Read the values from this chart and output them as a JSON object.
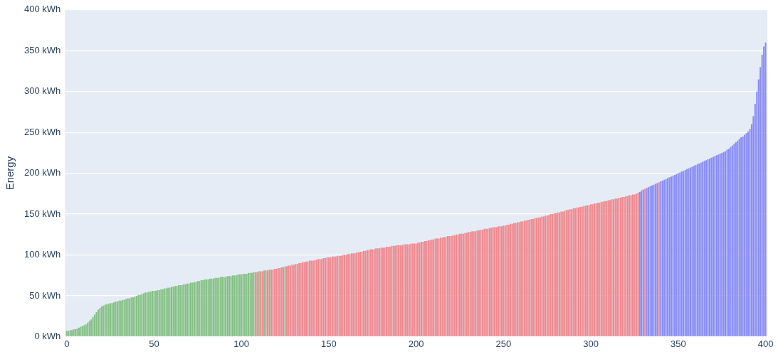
{
  "chart_data": {
    "type": "bar",
    "ylabel": "Energy",
    "xlim": [
      -1,
      401
    ],
    "xticks": [
      0,
      50,
      100,
      150,
      200,
      250,
      300,
      350,
      400
    ],
    "ylim": [
      0,
      400
    ],
    "yticks": [
      {
        "value": 0,
        "label": "0 kWh"
      },
      {
        "value": 50,
        "label": "50 kWh"
      },
      {
        "value": 100,
        "label": "100 kWh"
      },
      {
        "value": 150,
        "label": "150 kWh"
      },
      {
        "value": 200,
        "label": "200 kWh"
      },
      {
        "value": 250,
        "label": "250 kWh"
      },
      {
        "value": 300,
        "label": "300 kWh"
      },
      {
        "value": 350,
        "label": "350 kWh"
      },
      {
        "value": 400,
        "label": "400 kWh"
      }
    ],
    "grid": "y",
    "legend": false,
    "x": [
      0,
      1,
      2,
      3,
      4,
      5,
      6,
      7,
      8,
      9,
      10,
      11,
      12,
      13,
      14,
      15,
      16,
      17,
      18,
      19,
      20,
      21,
      22,
      23,
      24,
      25,
      26,
      27,
      28,
      29,
      30,
      31,
      32,
      33,
      34,
      35,
      36,
      37,
      38,
      39,
      40,
      41,
      42,
      43,
      44,
      45,
      46,
      47,
      48,
      49,
      50,
      51,
      52,
      53,
      54,
      55,
      56,
      57,
      58,
      59,
      60,
      61,
      62,
      63,
      64,
      65,
      66,
      67,
      68,
      69,
      70,
      71,
      72,
      73,
      74,
      75,
      76,
      77,
      78,
      79,
      80,
      81,
      82,
      83,
      84,
      85,
      86,
      87,
      88,
      89,
      90,
      91,
      92,
      93,
      94,
      95,
      96,
      97,
      98,
      99,
      100,
      101,
      102,
      103,
      104,
      105,
      106,
      107,
      108,
      109,
      110,
      111,
      112,
      113,
      114,
      115,
      116,
      117,
      118,
      119,
      120,
      121,
      122,
      123,
      124,
      125,
      126,
      127,
      128,
      129,
      130,
      131,
      132,
      133,
      134,
      135,
      136,
      137,
      138,
      139,
      140,
      141,
      142,
      143,
      144,
      145,
      146,
      147,
      148,
      149,
      150,
      151,
      152,
      153,
      154,
      155,
      156,
      157,
      158,
      159,
      160,
      161,
      162,
      163,
      164,
      165,
      166,
      167,
      168,
      169,
      170,
      171,
      172,
      173,
      174,
      175,
      176,
      177,
      178,
      179,
      180,
      181,
      182,
      183,
      184,
      185,
      186,
      187,
      188,
      189,
      190,
      191,
      192,
      193,
      194,
      195,
      196,
      197,
      198,
      199,
      200,
      201,
      202,
      203,
      204,
      205,
      206,
      207,
      208,
      209,
      210,
      211,
      212,
      213,
      214,
      215,
      216,
      217,
      218,
      219,
      220,
      221,
      222,
      223,
      224,
      225,
      226,
      227,
      228,
      229,
      230,
      231,
      232,
      233,
      234,
      235,
      236,
      237,
      238,
      239,
      240,
      241,
      242,
      243,
      244,
      245,
      246,
      247,
      248,
      249,
      250,
      251,
      252,
      253,
      254,
      255,
      256,
      257,
      258,
      259,
      260,
      261,
      262,
      263,
      264,
      265,
      266,
      267,
      268,
      269,
      270,
      271,
      272,
      273,
      274,
      275,
      276,
      277,
      278,
      279,
      280,
      281,
      282,
      283,
      284,
      285,
      286,
      287,
      288,
      289,
      290,
      291,
      292,
      293,
      294,
      295,
      296,
      297,
      298,
      299,
      300,
      301,
      302,
      303,
      304,
      305,
      306,
      307,
      308,
      309,
      310,
      311,
      312,
      313,
      314,
      315,
      316,
      317,
      318,
      319,
      320,
      321,
      322,
      323,
      324,
      325,
      326,
      327,
      328,
      329,
      330,
      331,
      332,
      333,
      334,
      335,
      336,
      337,
      338,
      339,
      340,
      341,
      342,
      343,
      344,
      345,
      346,
      347,
      348,
      349,
      350,
      351,
      352,
      353,
      354,
      355,
      356,
      357,
      358,
      359,
      360,
      361,
      362,
      363,
      364,
      365,
      366,
      367,
      368,
      369,
      370,
      371,
      372,
      373,
      374,
      375,
      376,
      377,
      378,
      379,
      380,
      381,
      382,
      383,
      384,
      385,
      386,
      387,
      388,
      389,
      390,
      391,
      392,
      393,
      394,
      395,
      396,
      397,
      398,
      399,
      400
    ],
    "values": [
      7,
      7,
      8,
      8,
      9,
      9,
      10,
      11,
      12,
      13,
      14,
      15,
      17,
      19,
      21,
      24,
      27,
      30,
      33,
      35,
      37,
      38,
      39,
      40,
      40,
      41,
      41,
      42,
      43,
      43,
      44,
      44,
      45,
      45,
      46,
      47,
      47,
      48,
      48,
      49,
      50,
      51,
      51,
      52,
      53,
      54,
      54,
      55,
      55,
      56,
      56,
      56,
      57,
      57,
      58,
      58,
      59,
      59,
      60,
      60,
      61,
      61,
      62,
      62,
      63,
      63,
      63,
      64,
      64,
      65,
      65,
      66,
      66,
      67,
      67,
      68,
      68,
      69,
      69,
      70,
      70,
      70,
      71,
      71,
      71,
      72,
      72,
      72,
      73,
      73,
      73,
      73,
      74,
      74,
      74,
      75,
      75,
      75,
      76,
      76,
      76,
      77,
      77,
      77,
      78,
      78,
      78,
      79,
      79,
      79,
      80,
      80,
      80,
      81,
      81,
      81,
      82,
      82,
      82,
      83,
      83,
      84,
      84,
      85,
      85,
      86,
      86,
      87,
      87,
      88,
      88,
      89,
      89,
      90,
      90,
      91,
      91,
      92,
      92,
      93,
      93,
      93,
      94,
      94,
      95,
      95,
      95,
      96,
      96,
      97,
      97,
      97,
      98,
      98,
      98,
      99,
      99,
      99,
      100,
      100,
      100,
      101,
      101,
      102,
      102,
      102,
      103,
      103,
      104,
      104,
      105,
      105,
      106,
      106,
      107,
      107,
      107,
      108,
      108,
      108,
      109,
      109,
      109,
      110,
      110,
      110,
      111,
      111,
      111,
      112,
      112,
      112,
      112,
      113,
      113,
      113,
      113,
      114,
      114,
      114,
      114,
      115,
      115,
      116,
      116,
      117,
      117,
      118,
      118,
      119,
      119,
      120,
      120,
      120,
      121,
      121,
      122,
      122,
      123,
      123,
      123,
      124,
      124,
      125,
      125,
      126,
      126,
      126,
      127,
      127,
      128,
      128,
      129,
      129,
      129,
      130,
      130,
      131,
      131,
      132,
      132,
      132,
      133,
      133,
      134,
      134,
      134,
      135,
      135,
      135,
      136,
      136,
      137,
      137,
      138,
      138,
      139,
      139,
      140,
      140,
      141,
      141,
      142,
      142,
      143,
      143,
      144,
      144,
      145,
      145,
      146,
      146,
      147,
      147,
      148,
      148,
      149,
      150,
      150,
      151,
      151,
      152,
      152,
      153,
      153,
      154,
      155,
      155,
      156,
      156,
      157,
      157,
      158,
      158,
      159,
      159,
      160,
      160,
      161,
      161,
      162,
      162,
      163,
      163,
      164,
      164,
      165,
      165,
      166,
      166,
      167,
      167,
      168,
      168,
      169,
      169,
      170,
      170,
      171,
      171,
      172,
      172,
      173,
      173,
      174,
      174,
      175,
      176,
      177,
      179,
      180,
      181,
      182,
      183,
      184,
      185,
      186,
      187,
      188,
      189,
      190,
      191,
      192,
      193,
      194,
      195,
      196,
      197,
      198,
      199,
      200,
      201,
      202,
      203,
      204,
      205,
      206,
      207,
      208,
      209,
      210,
      211,
      212,
      213,
      214,
      215,
      216,
      217,
      218,
      219,
      220,
      221,
      222,
      223,
      224,
      225,
      226,
      227,
      229,
      230,
      232,
      234,
      236,
      238,
      240,
      242,
      244,
      245,
      247,
      249,
      251,
      254,
      260,
      270,
      285,
      300,
      315,
      330,
      345,
      355,
      360
    ],
    "colors": [
      "#86c186",
      "#86c186",
      "#86c186",
      "#86c186",
      "#86c186",
      "#86c186",
      "#86c186",
      "#86c186",
      "#86c186",
      "#86c186",
      "#86c186",
      "#86c186",
      "#86c186",
      "#86c186",
      "#86c186",
      "#86c186",
      "#86c186",
      "#86c186",
      "#86c186",
      "#86c186",
      "#86c186",
      "#86c186",
      "#86c186",
      "#86c186",
      "#86c186",
      "#86c186",
      "#86c186",
      "#86c186",
      "#86c186",
      "#86c186",
      "#86c186",
      "#86c186",
      "#86c186",
      "#86c186",
      "#86c186",
      "#86c186",
      "#86c186",
      "#86c186",
      "#86c186",
      "#86c186",
      "#86c186",
      "#86c186",
      "#86c186",
      "#86c186",
      "#86c186",
      "#86c186",
      "#86c186",
      "#86c186",
      "#86c186",
      "#86c186",
      "#86c186",
      "#86c186",
      "#86c186",
      "#86c186",
      "#86c186",
      "#86c186",
      "#86c186",
      "#86c186",
      "#86c186",
      "#86c186",
      "#86c186",
      "#86c186",
      "#86c186",
      "#86c186",
      "#86c186",
      "#86c186",
      "#86c186",
      "#86c186",
      "#86c186",
      "#86c186",
      "#86c186",
      "#86c186",
      "#86c186",
      "#86c186",
      "#86c186",
      "#86c186",
      "#86c186",
      "#86c186",
      "#86c186",
      "#86c186",
      "#86c186",
      "#86c186",
      "#86c186",
      "#86c186",
      "#86c186",
      "#86c186",
      "#86c186",
      "#86c186",
      "#86c186",
      "#86c186",
      "#86c186",
      "#86c186",
      "#86c186",
      "#86c186",
      "#86c186",
      "#86c186",
      "#86c186",
      "#86c186",
      "#86c186",
      "#86c186",
      "#86c186",
      "#86c186",
      "#86c186",
      "#86c186",
      "#86c186",
      "#86c186",
      "#86c186",
      "#86c186",
      "#ef8a90",
      "#ef8a90",
      "#86c186",
      "#ef8a90",
      "#ef8a90",
      "#86c186",
      "#ef8a90",
      "#ef8a90",
      "#ef8a90",
      "#86c186",
      "#ef8a90",
      "#ef8a90",
      "#ef8a90",
      "#ef8a90",
      "#ef8a90",
      "#ef8a90",
      "#ef8a90",
      "#86c186",
      "#ef8a90",
      "#ef8a90",
      "#ef8a90",
      "#ef8a90",
      "#ef8a90",
      "#ef8a90",
      "#ef8a90",
      "#ef8a90",
      "#ef8a90",
      "#ef8a90",
      "#ef8a90",
      "#ef8a90",
      "#ef8a90",
      "#ef8a90",
      "#ef8a90",
      "#ef8a90",
      "#ef8a90",
      "#ef8a90",
      "#ef8a90",
      "#ef8a90",
      "#ef8a90",
      "#ef8a90",
      "#ef8a90",
      "#ef8a90",
      "#ef8a90",
      "#ef8a90",
      "#ef8a90",
      "#ef8a90",
      "#ef8a90",
      "#ef8a90",
      "#ef8a90",
      "#ef8a90",
      "#ef8a90",
      "#ef8a90",
      "#ef8a90",
      "#ef8a90",
      "#ef8a90",
      "#ef8a90",
      "#ef8a90",
      "#ef8a90",
      "#ef8a90",
      "#ef8a90",
      "#ef8a90",
      "#ef8a90",
      "#ef8a90",
      "#ef8a90",
      "#ef8a90",
      "#ef8a90",
      "#ef8a90",
      "#ef8a90",
      "#ef8a90",
      "#ef8a90",
      "#ef8a90",
      "#ef8a90",
      "#ef8a90",
      "#ef8a90",
      "#ef8a90",
      "#ef8a90",
      "#ef8a90",
      "#ef8a90",
      "#ef8a90",
      "#ef8a90",
      "#ef8a90",
      "#ef8a90",
      "#ef8a90",
      "#ef8a90",
      "#ef8a90",
      "#ef8a90",
      "#ef8a90",
      "#ef8a90",
      "#ef8a90",
      "#ef8a90",
      "#ef8a90",
      "#ef8a90",
      "#ef8a90",
      "#ef8a90",
      "#ef8a90",
      "#ef8a90",
      "#ef8a90",
      "#ef8a90",
      "#ef8a90",
      "#ef8a90",
      "#ef8a90",
      "#ef8a90",
      "#ef8a90",
      "#ef8a90",
      "#ef8a90",
      "#ef8a90",
      "#ef8a90",
      "#ef8a90",
      "#ef8a90",
      "#ef8a90",
      "#ef8a90",
      "#ef8a90",
      "#ef8a90",
      "#ef8a90",
      "#ef8a90",
      "#ef8a90",
      "#ef8a90",
      "#ef8a90",
      "#ef8a90",
      "#ef8a90",
      "#ef8a90",
      "#ef8a90",
      "#ef8a90",
      "#ef8a90",
      "#ef8a90",
      "#ef8a90",
      "#ef8a90",
      "#ef8a90",
      "#ef8a90",
      "#ef8a90",
      "#ef8a90",
      "#ef8a90",
      "#ef8a90",
      "#ef8a90",
      "#ef8a90",
      "#ef8a90",
      "#ef8a90",
      "#ef8a90",
      "#ef8a90",
      "#ef8a90",
      "#ef8a90",
      "#ef8a90",
      "#ef8a90",
      "#ef8a90",
      "#ef8a90",
      "#ef8a90",
      "#ef8a90",
      "#ef8a90",
      "#ef8a90",
      "#ef8a90",
      "#ef8a90",
      "#ef8a90",
      "#ef8a90",
      "#ef8a90",
      "#ef8a90",
      "#ef8a90",
      "#ef8a90",
      "#ef8a90",
      "#ef8a90",
      "#ef8a90",
      "#ef8a90",
      "#ef8a90",
      "#ef8a90",
      "#ef8a90",
      "#ef8a90",
      "#ef8a90",
      "#ef8a90",
      "#ef8a90",
      "#ef8a90",
      "#ef8a90",
      "#ef8a90",
      "#ef8a90",
      "#ef8a90",
      "#ef8a90",
      "#ef8a90",
      "#ef8a90",
      "#ef8a90",
      "#ef8a90",
      "#ef8a90",
      "#ef8a90",
      "#ef8a90",
      "#ef8a90",
      "#ef8a90",
      "#ef8a90",
      "#ef8a90",
      "#ef8a90",
      "#ef8a90",
      "#ef8a90",
      "#ef8a90",
      "#ef8a90",
      "#ef8a90",
      "#ef8a90",
      "#ef8a90",
      "#ef8a90",
      "#ef8a90",
      "#ef8a90",
      "#ef8a90",
      "#ef8a90",
      "#ef8a90",
      "#ef8a90",
      "#ef8a90",
      "#ef8a90",
      "#ef8a90",
      "#ef8a90",
      "#ef8a90",
      "#ef8a90",
      "#ef8a90",
      "#ef8a90",
      "#ef8a90",
      "#ef8a90",
      "#ef8a90",
      "#ef8a90",
      "#ef8a90",
      "#ef8a90",
      "#ef8a90",
      "#ef8a90",
      "#ef8a90",
      "#ef8a90",
      "#ef8a90",
      "#ef8a90",
      "#8b8df4",
      "#8b8df4",
      "#8b8df4",
      "#ef8a90",
      "#8b8df4",
      "#8b8df4",
      "#8b8df4",
      "#8b8df4",
      "#8b8df4",
      "#8b8df4",
      "#8b8df4",
      "#ef8a90",
      "#8b8df4",
      "#8b8df4",
      "#8b8df4",
      "#8b8df4",
      "#8b8df4",
      "#8b8df4",
      "#8b8df4",
      "#8b8df4",
      "#8b8df4",
      "#8b8df4",
      "#8b8df4",
      "#8b8df4",
      "#8b8df4",
      "#8b8df4",
      "#8b8df4",
      "#8b8df4",
      "#8b8df4",
      "#8b8df4",
      "#8b8df4",
      "#8b8df4",
      "#8b8df4",
      "#8b8df4",
      "#8b8df4",
      "#8b8df4",
      "#8b8df4",
      "#8b8df4",
      "#8b8df4",
      "#8b8df4",
      "#8b8df4",
      "#8b8df4",
      "#8b8df4",
      "#8b8df4",
      "#8b8df4",
      "#8b8df4",
      "#8b8df4",
      "#8b8df4",
      "#8b8df4",
      "#8b8df4",
      "#8b8df4",
      "#8b8df4",
      "#8b8df4",
      "#8b8df4",
      "#8b8df4",
      "#8b8df4",
      "#8b8df4",
      "#8b8df4",
      "#8b8df4",
      "#8b8df4",
      "#8b8df4",
      "#8b8df4",
      "#8b8df4",
      "#8b8df4",
      "#8b8df4",
      "#8b8df4",
      "#8b8df4",
      "#8b8df4",
      "#8b8df4",
      "#8b8df4",
      "#8b8df4",
      "#8b8df4",
      "#8b8df4"
    ]
  }
}
